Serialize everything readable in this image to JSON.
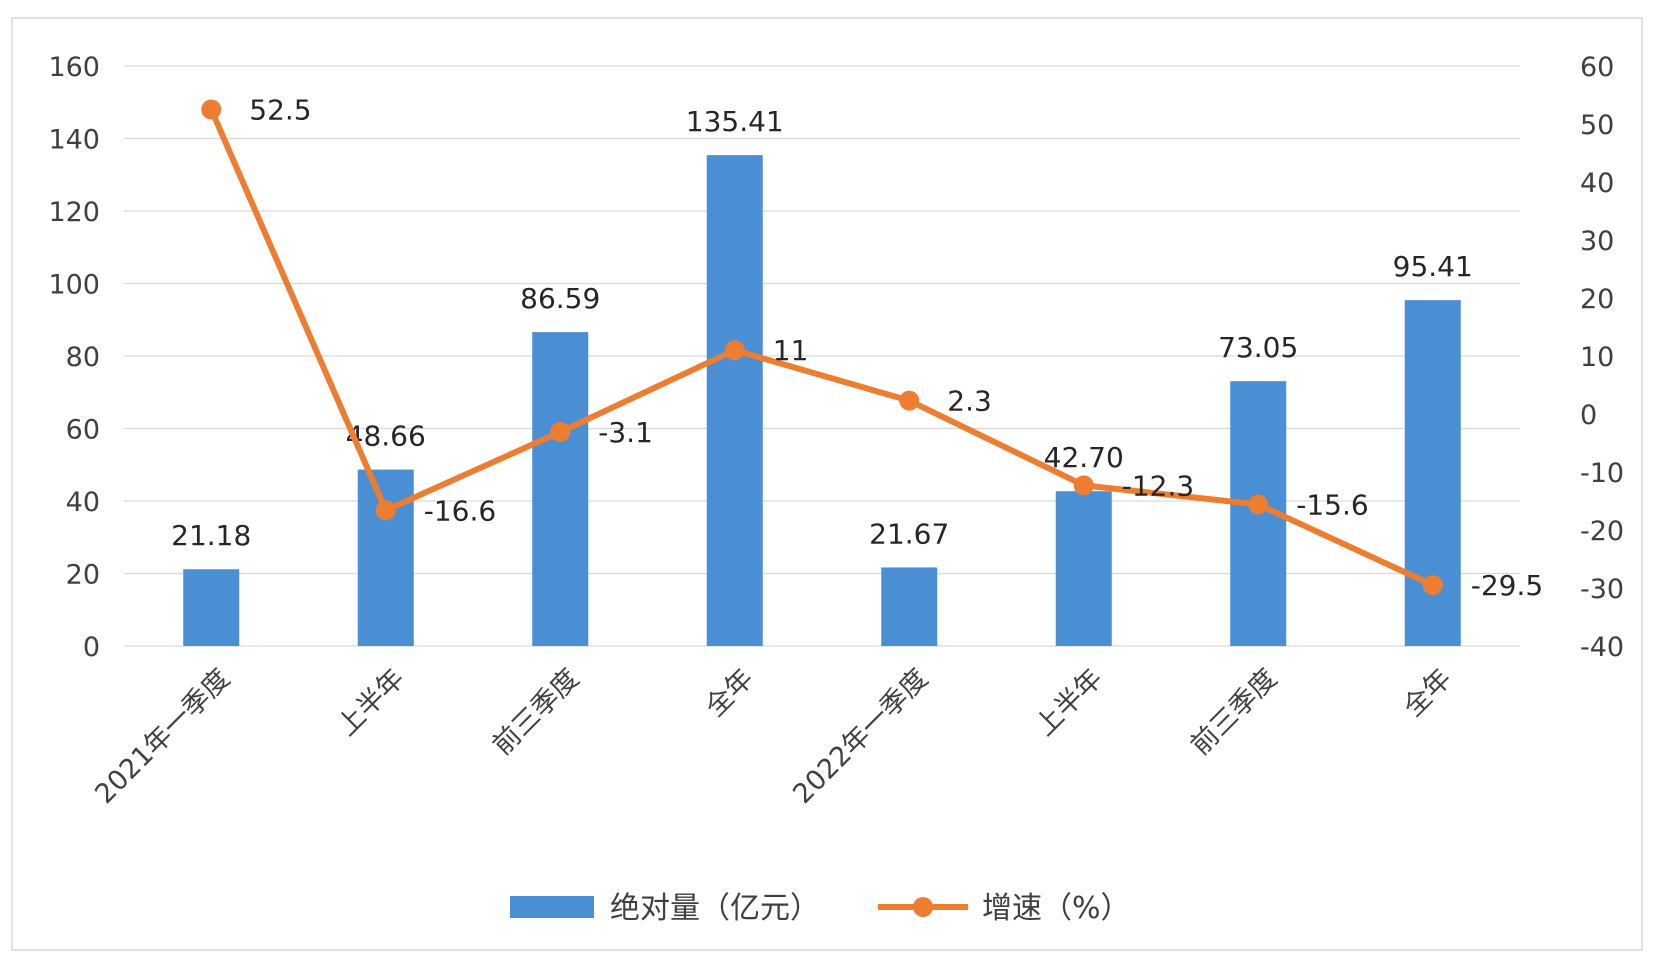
{
  "chart_data": {
    "type": "bar",
    "categories": [
      "2021年一季度",
      "上半年",
      "前三季度",
      "全年",
      "2022年一季度",
      "上半年",
      "前三季度",
      "全年"
    ],
    "series": [
      {
        "name": "绝对量（亿元）",
        "type": "bar",
        "axis": "left",
        "values": [
          21.18,
          48.66,
          86.59,
          135.41,
          21.67,
          42.7,
          73.05,
          95.41
        ],
        "labels": [
          "21.18",
          "48.66",
          "86.59",
          "135.41",
          "21.67",
          "42.70",
          "73.05",
          "95.41"
        ],
        "color": "#4a8fd3"
      },
      {
        "name": "增速（%）",
        "type": "line",
        "axis": "right",
        "values": [
          52.5,
          -16.6,
          -3.1,
          11,
          2.3,
          -12.3,
          -15.6,
          -29.5
        ],
        "labels": [
          "52.5",
          "-16.6",
          "-3.1",
          "11",
          "2.3",
          "-12.3",
          "-15.6",
          "-29.5"
        ],
        "color": "#ed7d31"
      }
    ],
    "ylim": [
      0,
      160
    ],
    "y_ticks": [
      0,
      20,
      40,
      60,
      80,
      100,
      120,
      140,
      160
    ],
    "y2lim": [
      -40,
      60
    ],
    "y2_ticks": [
      -40,
      -30,
      -20,
      -10,
      0,
      10,
      20,
      30,
      40,
      50,
      60
    ],
    "grid": true,
    "legend": "bottom-center"
  }
}
